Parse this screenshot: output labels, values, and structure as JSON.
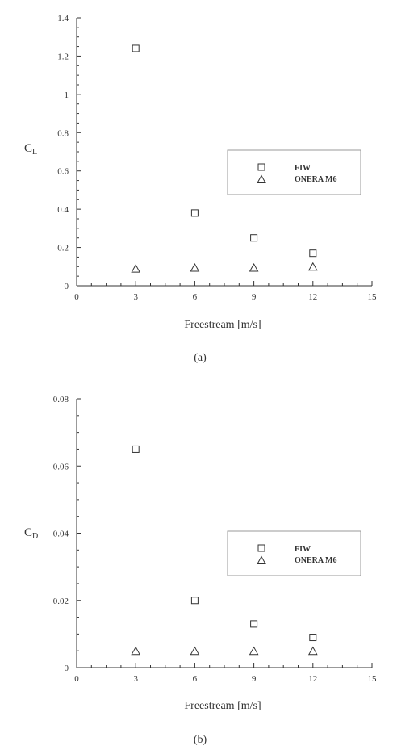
{
  "chart_data": [
    {
      "type": "scatter",
      "label": "(a)",
      "xlabel": "Freestream [m/s]",
      "ylabel": "C",
      "ylabel_sub": "L",
      "xlim": [
        0,
        15
      ],
      "ylim": [
        0,
        1.4
      ],
      "xticks": [
        "0",
        "3",
        "6",
        "9",
        "12",
        "15"
      ],
      "yticks": [
        "0",
        "0.2",
        "0.4",
        "0.6",
        "0.8",
        "1",
        "1.2",
        "1.4"
      ],
      "legend_position": "right",
      "series": [
        {
          "name": "FIW",
          "marker": "square",
          "x": [
            3,
            6,
            9,
            12
          ],
          "y": [
            1.24,
            0.38,
            0.25,
            0.17
          ]
        },
        {
          "name": "ONERA M6",
          "marker": "triangle",
          "x": [
            3,
            6,
            9,
            12
          ],
          "y": [
            0.09,
            0.095,
            0.095,
            0.1
          ]
        }
      ]
    },
    {
      "type": "scatter",
      "label": "(b)",
      "xlabel": "Freestream [m/s]",
      "ylabel": "C",
      "ylabel_sub": "D",
      "xlim": [
        0,
        15
      ],
      "ylim": [
        0,
        0.08
      ],
      "xticks": [
        "0",
        "3",
        "6",
        "9",
        "12",
        "15"
      ],
      "yticks": [
        "0",
        "0.02",
        "0.04",
        "0.06",
        "0.08"
      ],
      "legend_position": "right",
      "series": [
        {
          "name": "FIW",
          "marker": "square",
          "x": [
            3,
            6,
            9,
            12
          ],
          "y": [
            0.065,
            0.02,
            0.013,
            0.009
          ]
        },
        {
          "name": "ONERA M6",
          "marker": "triangle",
          "x": [
            3,
            6,
            9,
            12
          ],
          "y": [
            0.005,
            0.005,
            0.005,
            0.005
          ]
        }
      ]
    }
  ]
}
